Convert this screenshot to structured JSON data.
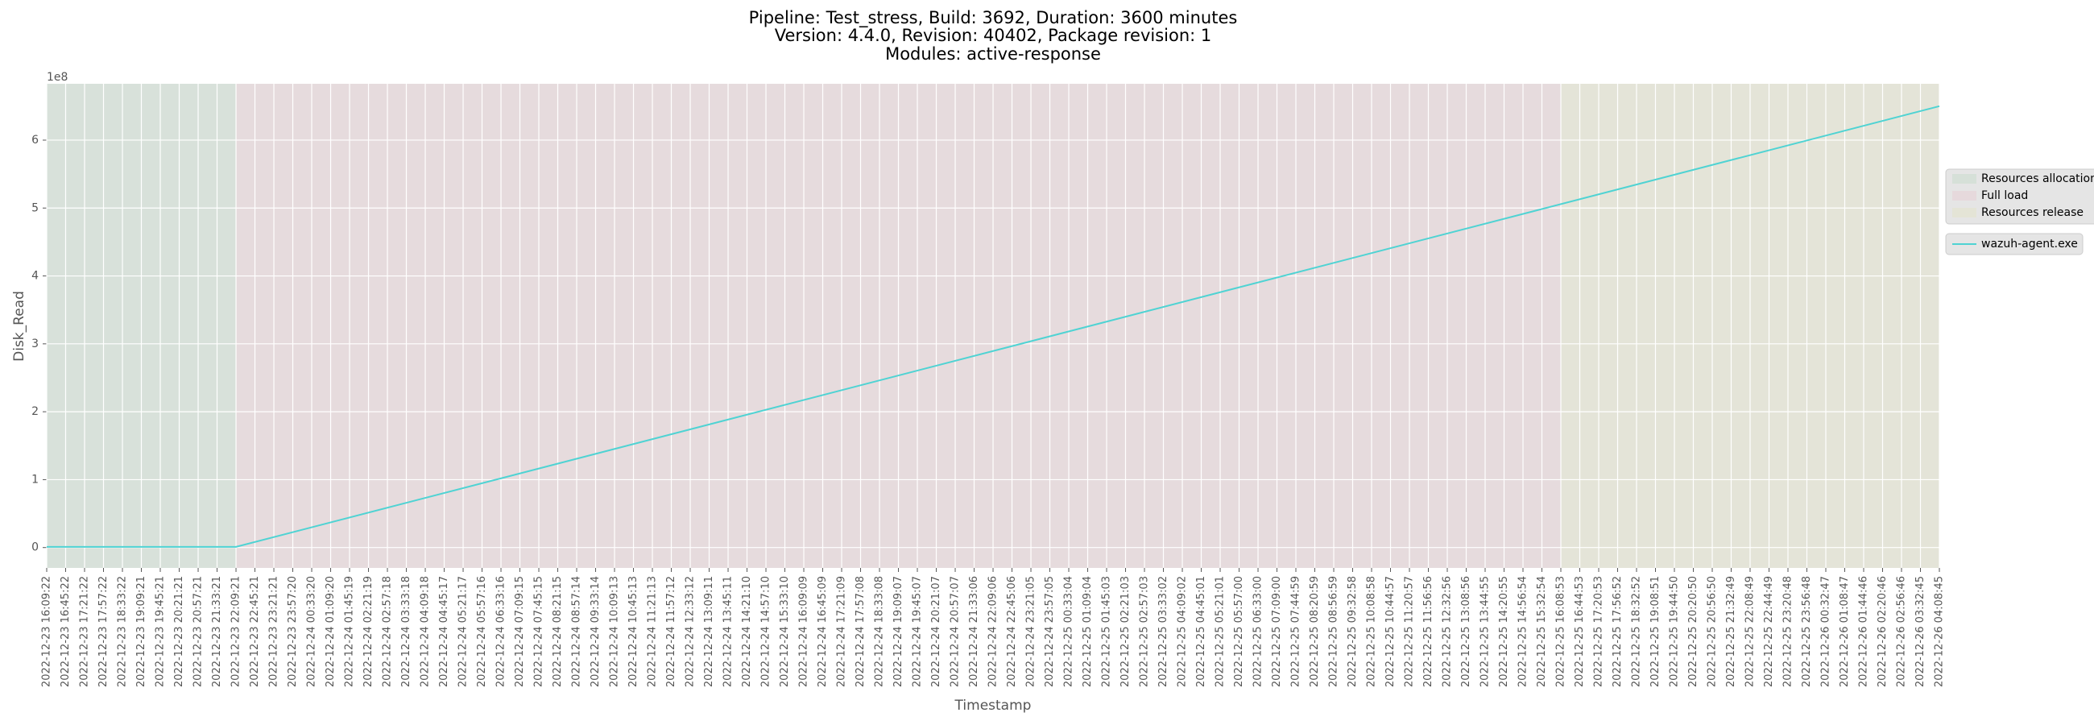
{
  "chart_data": {
    "type": "line",
    "title": [
      "Pipeline: Test_stress, Build: 3692, Duration: 3600 minutes",
      "Version: 4.4.0, Revision: 40402, Package revision: 1",
      "Modules: active-response"
    ],
    "xlabel": "Timestamp",
    "ylabel": "Disk_Read",
    "y_offset_label": "1e8",
    "xlim": [
      "2022-12-23 16:09:22",
      "2022-12-26 04:08:45"
    ],
    "xticks": [
      "2022-12-23 16:09:22",
      "2022-12-23 16:45:22",
      "2022-12-23 17:21:22",
      "2022-12-23 17:57:22",
      "2022-12-23 18:33:22",
      "2022-12-23 19:09:21",
      "2022-12-23 19:45:21",
      "2022-12-23 20:21:21",
      "2022-12-23 20:57:21",
      "2022-12-23 21:33:21",
      "2022-12-23 22:09:21",
      "2022-12-23 22:45:21",
      "2022-12-23 23:21:21",
      "2022-12-23 23:57:20",
      "2022-12-24 00:33:20",
      "2022-12-24 01:09:20",
      "2022-12-24 01:45:19",
      "2022-12-24 02:21:19",
      "2022-12-24 02:57:18",
      "2022-12-24 03:33:18",
      "2022-12-24 04:09:18",
      "2022-12-24 04:45:17",
      "2022-12-24 05:21:17",
      "2022-12-24 05:57:16",
      "2022-12-24 06:33:16",
      "2022-12-24 07:09:15",
      "2022-12-24 07:45:15",
      "2022-12-24 08:21:15",
      "2022-12-24 08:57:14",
      "2022-12-24 09:33:14",
      "2022-12-24 10:09:13",
      "2022-12-24 10:45:13",
      "2022-12-24 11:21:13",
      "2022-12-24 11:57:12",
      "2022-12-24 12:33:12",
      "2022-12-24 13:09:11",
      "2022-12-24 13:45:11",
      "2022-12-24 14:21:10",
      "2022-12-24 14:57:10",
      "2022-12-24 15:33:10",
      "2022-12-24 16:09:09",
      "2022-12-24 16:45:09",
      "2022-12-24 17:21:09",
      "2022-12-24 17:57:08",
      "2022-12-24 18:33:08",
      "2022-12-24 19:09:07",
      "2022-12-24 19:45:07",
      "2022-12-24 20:21:07",
      "2022-12-24 20:57:07",
      "2022-12-24 21:33:06",
      "2022-12-24 22:09:06",
      "2022-12-24 22:45:06",
      "2022-12-24 23:21:05",
      "2022-12-24 23:57:05",
      "2022-12-25 00:33:04",
      "2022-12-25 01:09:04",
      "2022-12-25 01:45:03",
      "2022-12-25 02:21:03",
      "2022-12-25 02:57:03",
      "2022-12-25 03:33:02",
      "2022-12-25 04:09:02",
      "2022-12-25 04:45:01",
      "2022-12-25 05:21:01",
      "2022-12-25 05:57:00",
      "2022-12-25 06:33:00",
      "2022-12-25 07:09:00",
      "2022-12-25 07:44:59",
      "2022-12-25 08:20:59",
      "2022-12-25 08:56:59",
      "2022-12-25 09:32:58",
      "2022-12-25 10:08:58",
      "2022-12-25 10:44:57",
      "2022-12-25 11:20:57",
      "2022-12-25 11:56:56",
      "2022-12-25 12:32:56",
      "2022-12-25 13:08:56",
      "2022-12-25 13:44:55",
      "2022-12-25 14:20:55",
      "2022-12-25 14:56:54",
      "2022-12-25 15:32:54",
      "2022-12-25 16:08:53",
      "2022-12-25 16:44:53",
      "2022-12-25 17:20:53",
      "2022-12-25 17:56:52",
      "2022-12-25 18:32:52",
      "2022-12-25 19:08:51",
      "2022-12-25 19:44:50",
      "2022-12-25 20:20:50",
      "2022-12-25 20:56:50",
      "2022-12-25 21:32:49",
      "2022-12-25 22:08:49",
      "2022-12-25 22:44:49",
      "2022-12-25 23:20:48",
      "2022-12-25 23:56:48",
      "2022-12-26 00:32:47",
      "2022-12-26 01:08:47",
      "2022-12-26 01:44:46",
      "2022-12-26 02:20:46",
      "2022-12-26 02:56:46",
      "2022-12-26 03:32:45",
      "2022-12-26 04:08:45"
    ],
    "ylim": [
      -30000000,
      683000000
    ],
    "yticks": [
      0,
      {
        "value": 100000000,
        "label": "1"
      },
      {
        "value": 200000000,
        "label": "2"
      },
      {
        "value": 300000000,
        "label": "3"
      },
      {
        "value": 400000000,
        "label": "4"
      },
      {
        "value": 500000000,
        "label": "5"
      },
      {
        "value": 600000000,
        "label": "6"
      }
    ],
    "grid": true,
    "spans": [
      {
        "name": "Resources allocation",
        "color": "#d6e0d8",
        "start": "2022-12-23 16:09:22",
        "end": "2022-12-23 22:09:21"
      },
      {
        "name": "Full load",
        "color": "#e6d9dc",
        "start": "2022-12-23 22:09:21",
        "end": "2022-12-25 16:08:53"
      },
      {
        "name": "Resources release",
        "color": "#e4e4d6",
        "start": "2022-12-25 16:08:53",
        "end": "2022-12-26 04:08:45"
      }
    ],
    "series": [
      {
        "name": "wazuh-agent.exe",
        "color": "#4fd3d3",
        "x": [
          "2022-12-23 16:09:22",
          "2022-12-23 22:09:21",
          "2022-12-26 04:08:45"
        ],
        "values": [
          1000000,
          1000000,
          650000000
        ]
      }
    ],
    "legend": "right"
  }
}
